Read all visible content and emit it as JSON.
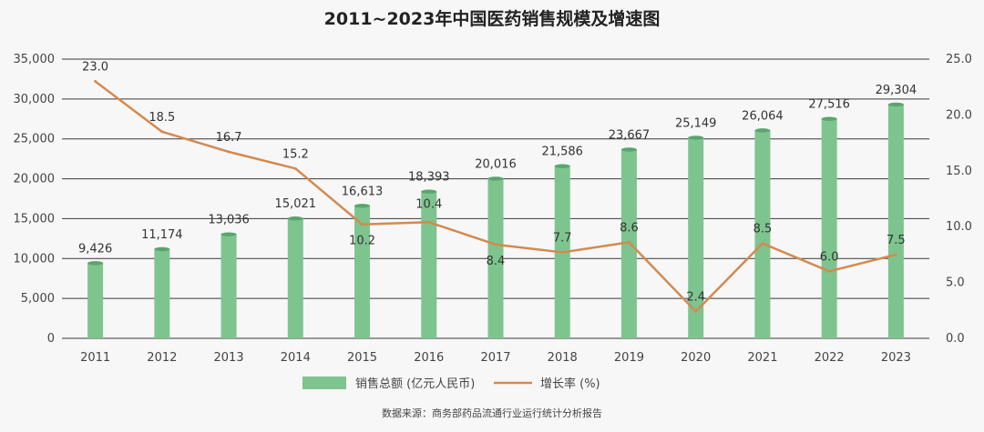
{
  "chart_data": {
    "type": "bar+line",
    "title": "2011~2023年中国医药销售规模及增速图",
    "categories": [
      "2011",
      "2012",
      "2013",
      "2014",
      "2015",
      "2016",
      "2017",
      "2018",
      "2019",
      "2020",
      "2021",
      "2022",
      "2023"
    ],
    "series": [
      {
        "name": "销售总额 (亿元人民币)",
        "type": "bar",
        "axis": "left",
        "color": "#7ec48f",
        "values": [
          9426,
          11174,
          13036,
          15021,
          16613,
          18393,
          20016,
          21586,
          23667,
          25149,
          26064,
          27516,
          29304
        ],
        "labels": [
          "9,426",
          "11,174",
          "13,036",
          "15,021",
          "16,613",
          "18,393",
          "20,016",
          "21,586",
          "23,667",
          "25,149",
          "26,064",
          "27,516",
          "29,304"
        ]
      },
      {
        "name": "增长率 (%)",
        "type": "line",
        "axis": "right",
        "color": "#d38a4f",
        "values": [
          23.0,
          18.5,
          16.7,
          15.2,
          10.2,
          10.4,
          8.4,
          7.7,
          8.6,
          2.4,
          8.5,
          6.0,
          7.5
        ],
        "labels": [
          "23.0",
          "18.5",
          "16.7",
          "15.2",
          "10.2",
          "10.4",
          "8.4",
          "7.7",
          "8.6",
          "2.4",
          "8.5",
          "6.0",
          "7.5"
        ]
      }
    ],
    "y_left": {
      "ylim": [
        0,
        35000
      ],
      "ticks": [
        0,
        5000,
        10000,
        15000,
        20000,
        25000,
        30000,
        35000
      ],
      "tick_labels": [
        "0",
        "5,000",
        "10,000",
        "15,000",
        "20,000",
        "25,000",
        "30,000",
        "35,000"
      ]
    },
    "y_right": {
      "ylim": [
        0,
        25
      ],
      "ticks": [
        0,
        5,
        10,
        15,
        20,
        25
      ],
      "tick_labels": [
        "0.0",
        "5.0",
        "10.0",
        "15.0",
        "20.0",
        "25.0"
      ]
    },
    "grid": true,
    "legend_position": "bottom-center"
  },
  "legend": {
    "bar_label": "销售总额 (亿元人民币)",
    "line_label": "增长率 (%)"
  },
  "source_note": "数据来源：商务部药品流通行业运行统计分析报告"
}
